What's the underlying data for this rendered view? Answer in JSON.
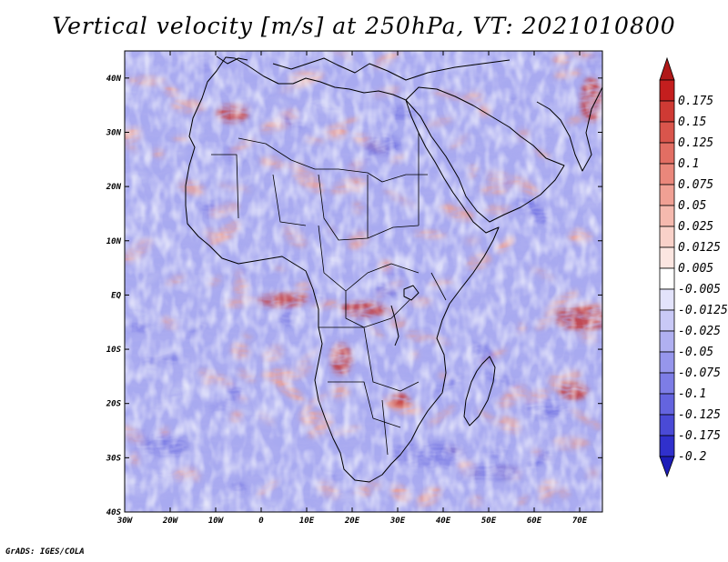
{
  "title": "Vertical velocity [m/s] at 250hPa, VT: 2021010800",
  "credit": "GrADS: IGES/COLA",
  "map": {
    "lon_range": [
      -30,
      75
    ],
    "lat_range": [
      -40,
      45
    ],
    "lon_ticks": [
      {
        "value": -30,
        "label": "30W"
      },
      {
        "value": -20,
        "label": "20W"
      },
      {
        "value": -10,
        "label": "10W"
      },
      {
        "value": 0,
        "label": "0"
      },
      {
        "value": 10,
        "label": "10E"
      },
      {
        "value": 20,
        "label": "20E"
      },
      {
        "value": 30,
        "label": "30E"
      },
      {
        "value": 40,
        "label": "40E"
      },
      {
        "value": 50,
        "label": "50E"
      },
      {
        "value": 60,
        "label": "60E"
      },
      {
        "value": 70,
        "label": "70E"
      }
    ],
    "lat_ticks": [
      {
        "value": 40,
        "label": "40N"
      },
      {
        "value": 30,
        "label": "30N"
      },
      {
        "value": 20,
        "label": "20N"
      },
      {
        "value": 10,
        "label": "10N"
      },
      {
        "value": 0,
        "label": "EQ"
      },
      {
        "value": -10,
        "label": "10S"
      },
      {
        "value": -20,
        "label": "20S"
      },
      {
        "value": -30,
        "label": "30S"
      },
      {
        "value": -40,
        "label": "40S"
      }
    ]
  },
  "colorbar": {
    "levels": [
      {
        "label": "0.175",
        "color": "#c41e1e"
      },
      {
        "label": "0.15",
        "color": "#cf3a34"
      },
      {
        "label": "0.125",
        "color": "#d9554c"
      },
      {
        "label": "0.1",
        "color": "#e26e63"
      },
      {
        "label": "0.075",
        "color": "#ea877b"
      },
      {
        "label": "0.05",
        "color": "#f0a094"
      },
      {
        "label": "0.025",
        "color": "#f5b9ae"
      },
      {
        "label": "0.0125",
        "color": "#f9d1c9"
      },
      {
        "label": "0.005",
        "color": "#fce6e1"
      },
      {
        "label": "-0.005",
        "color": "#ffffff"
      },
      {
        "label": "-0.0125",
        "color": "#e3e3fb"
      },
      {
        "label": "-0.025",
        "color": "#c9c9f6"
      },
      {
        "label": "-0.05",
        "color": "#b0b0f1"
      },
      {
        "label": "-0.075",
        "color": "#9696ec"
      },
      {
        "label": "-0.1",
        "color": "#7d7de6"
      },
      {
        "label": "-0.125",
        "color": "#6464df"
      },
      {
        "label": "-0.175",
        "color": "#4a4ad6"
      },
      {
        "label": "-0.2",
        "color": "#3030cc"
      }
    ],
    "top_color": "#b01818",
    "bottom_color": "#1c1cb8"
  },
  "palette": {
    "field_base": "#a8aaf0",
    "strong_red": "#c43a3a",
    "pink": "#f0a090",
    "light_blue": "#c8caf4",
    "strong_blue": "#6c6ce0",
    "coast": "#000000"
  }
}
